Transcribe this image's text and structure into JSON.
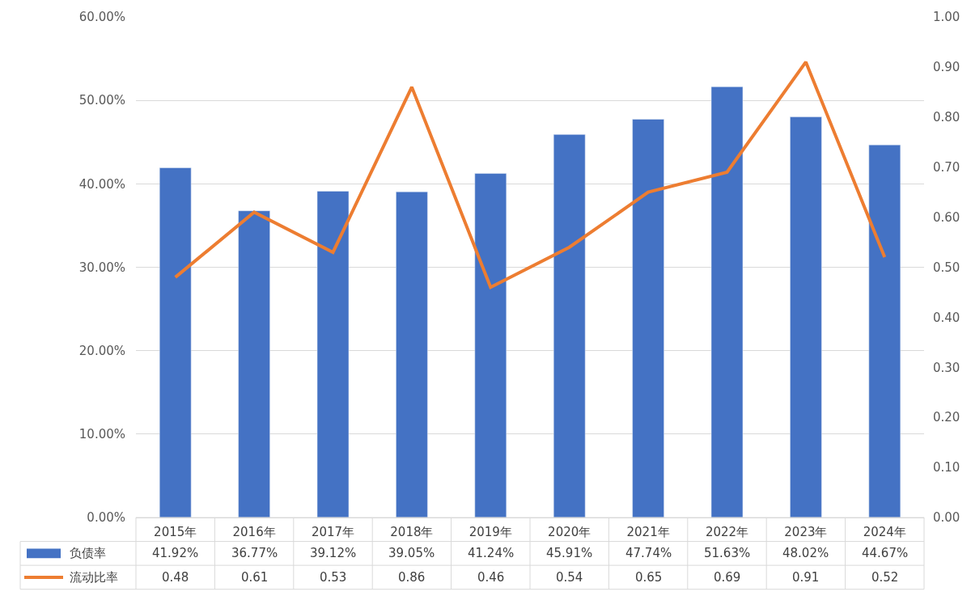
{
  "chart_data": {
    "type": "bar",
    "categories": [
      "2015年",
      "2016年",
      "2017年",
      "2018年",
      "2019年",
      "2020年",
      "2021年",
      "2022年",
      "2023年",
      "2024年"
    ],
    "series": [
      {
        "name": "负债率",
        "color": "#4472c4",
        "values": [
          41.92,
          36.77,
          39.12,
          39.05,
          41.24,
          45.91,
          47.74,
          51.63,
          48.02,
          44.67
        ],
        "value_labels": [
          "41.92%",
          "36.77%",
          "39.12%",
          "39.05%",
          "41.24%",
          "45.91%",
          "47.74%",
          "51.63%",
          "48.02%",
          "44.67%"
        ]
      },
      {
        "name": "流动比率",
        "type": "line",
        "axis": "y2",
        "color": "#ed7d31",
        "values": [
          0.48,
          0.61,
          0.53,
          0.86,
          0.46,
          0.54,
          0.65,
          0.69,
          0.91,
          0.52
        ],
        "value_labels": [
          "0.48",
          "0.61",
          "0.53",
          "0.86",
          "0.46",
          "0.54",
          "0.65",
          "0.69",
          "0.91",
          "0.52"
        ]
      }
    ],
    "ylim": [
      0,
      60
    ],
    "yticks": [
      {
        "value": 0,
        "label": "0.00%"
      },
      {
        "value": 10,
        "label": "10.00%"
      },
      {
        "value": 20,
        "label": "20.00%"
      },
      {
        "value": 30,
        "label": "30.00%"
      },
      {
        "value": 40,
        "label": "40.00%"
      },
      {
        "value": 50,
        "label": "50.00%"
      },
      {
        "value": 60,
        "label": "60.00%"
      }
    ],
    "y2lim": [
      0,
      1
    ],
    "y2ticks": [
      {
        "value": 0,
        "label": "0.00"
      },
      {
        "value": 0.1,
        "label": "0.10"
      },
      {
        "value": 0.2,
        "label": "0.20"
      },
      {
        "value": 0.3,
        "label": "0.30"
      },
      {
        "value": 0.4,
        "label": "0.40"
      },
      {
        "value": 0.5,
        "label": "0.50"
      },
      {
        "value": 0.6,
        "label": "0.60"
      },
      {
        "value": 0.7,
        "label": "0.70"
      },
      {
        "value": 0.8,
        "label": "0.80"
      },
      {
        "value": 0.9,
        "label": "0.90"
      },
      {
        "value": 1,
        "label": "1.00"
      }
    ],
    "grid": "y",
    "legend": "bottom left",
    "line_style": "solid",
    "marker": "none"
  }
}
